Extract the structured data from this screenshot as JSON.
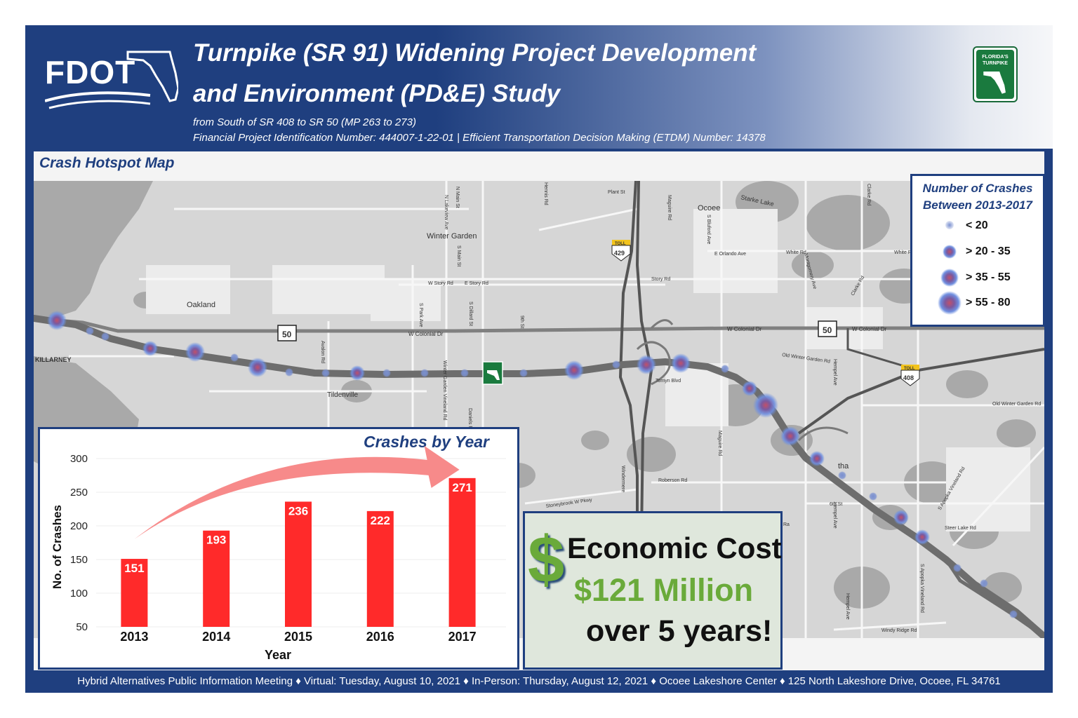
{
  "header": {
    "logo_text": "FDOT",
    "title_line1": "Turnpike (SR 91) Widening Project Development",
    "title_line2": "and Environment (PD&E) Study",
    "subtitle_line1": "from South of SR 408 to SR 50 (MP 263 to 273)",
    "subtitle_line2": "Financial Project Identification Number: 444007-1-22-01 |  Efficient Transportation Decision Making (ETDM) Number: 14378",
    "partner_logo_text": [
      "FLORIDA'S",
      "TURNPIKE"
    ]
  },
  "map": {
    "title": "Crash Hotspot Map",
    "places": [
      "Winter Garden",
      "Oakland",
      "KILLARNEY",
      "Tildenville",
      "Ocoee",
      "Starke Lake",
      "tha"
    ],
    "streets": [
      "W Colonial Dr",
      "W Colonial Dr",
      "W Colonial Dr",
      "Plant St",
      "W Story Rd",
      "E Story Rd",
      "Story Rd",
      "E Orlando Ave",
      "White Rd",
      "White R",
      "Old Winter Garden Rd",
      "Old Winter Garden Rd",
      "Tomyn Blvd",
      "Roberson Rd",
      "Stoneybrook W Pkwy",
      "6th St",
      "Steer Lake Rd",
      "Windy Ridge Rd",
      "Avalon Rd",
      "9th St",
      "S Park Ave",
      "S Dillard St",
      "Winter Garden Vineland Rd",
      "Daniels Rd",
      "Maguire Rd",
      "Maguire Rd",
      "Hempel Ave",
      "Hempel Ave",
      "Hempel Ave",
      "S Apopka Vineland Rd",
      "S Apopka Vineland Rd",
      "Montgomery Ave",
      "Clarke Rd",
      "Clarke Rd",
      "S Bluford Ave",
      "N Main St",
      "S Main St",
      "N Lakeview Ave",
      "Hennis Rd",
      "Windermere",
      "Ra"
    ],
    "shields": {
      "sr50": "50",
      "sr429": "429",
      "sr408": "408",
      "toll": "TOLL"
    },
    "hotspots": [
      {
        "name": "hotspot-01",
        "category": "> 35 - 55"
      },
      {
        "name": "hotspot-02",
        "category": "< 20"
      },
      {
        "name": "hotspot-03",
        "category": "< 20"
      },
      {
        "name": "hotspot-04",
        "category": "> 20 - 35"
      },
      {
        "name": "hotspot-05",
        "category": "> 35 - 55"
      },
      {
        "name": "hotspot-06",
        "category": "< 20"
      },
      {
        "name": "hotspot-07",
        "category": "> 35 - 55"
      },
      {
        "name": "hotspot-08",
        "category": "< 20"
      },
      {
        "name": "hotspot-09",
        "category": "< 20"
      },
      {
        "name": "hotspot-10",
        "category": "> 20 - 35"
      },
      {
        "name": "hotspot-11",
        "category": "< 20"
      },
      {
        "name": "hotspot-12",
        "category": "< 20"
      },
      {
        "name": "hotspot-13",
        "category": "< 20"
      },
      {
        "name": "hotspot-14",
        "category": "< 20"
      },
      {
        "name": "hotspot-15",
        "category": "> 35 - 55"
      },
      {
        "name": "hotspot-16",
        "category": "< 20"
      },
      {
        "name": "hotspot-17",
        "category": "> 35 - 55"
      },
      {
        "name": "hotspot-18",
        "category": "> 35 - 55"
      },
      {
        "name": "hotspot-19",
        "category": "< 20"
      },
      {
        "name": "hotspot-20",
        "category": "> 20 - 35"
      },
      {
        "name": "hotspot-21",
        "category": "> 55 - 80"
      },
      {
        "name": "hotspot-22",
        "category": "> 35 - 55"
      },
      {
        "name": "hotspot-23",
        "category": "> 20 - 35"
      },
      {
        "name": "hotspot-24",
        "category": "< 20"
      },
      {
        "name": "hotspot-25",
        "category": "< 20"
      },
      {
        "name": "hotspot-26",
        "category": "> 20 - 35"
      },
      {
        "name": "hotspot-27",
        "category": "> 20 - 35"
      },
      {
        "name": "hotspot-28",
        "category": "< 20"
      },
      {
        "name": "hotspot-29",
        "category": "< 20"
      },
      {
        "name": "hotspot-30",
        "category": "< 20"
      }
    ]
  },
  "legend": {
    "title_line1": "Number of Crashes",
    "title_line2": "Between 2013-2017",
    "items": [
      {
        "label": "< 20"
      },
      {
        "label": "> 20 - 35"
      },
      {
        "label": "> 35 - 55"
      },
      {
        "label": "> 55 - 80"
      }
    ]
  },
  "chart_data": {
    "type": "bar",
    "title": "Crashes by Year",
    "categories": [
      "2013",
      "2014",
      "2015",
      "2016",
      "2017"
    ],
    "values": [
      151,
      193,
      236,
      222,
      271
    ],
    "xlabel": "Year",
    "ylabel": "No. of Crashes",
    "ylim": [
      50,
      300
    ],
    "yticks": [
      50,
      100,
      150,
      200,
      250,
      300
    ],
    "bar_color": "#ff2a2a",
    "trend_arrow_color": "#f78a8a",
    "data_labels": true
  },
  "economic_cost": {
    "symbol": "$",
    "line1": "Economic Cost",
    "line2": "$121 Million",
    "line3": "over 5 years!"
  },
  "footer": {
    "text": "Hybrid Alternatives Public Information Meeting  ♦  Virtual: Tuesday, August 10, 2021  ♦  In-Person: Thursday, August 12, 2021  ♦  Ocoee Lakeshore Center  ♦  125 North Lakeshore Drive, Ocoee, FL 34761"
  },
  "colors": {
    "brand_blue": "#1f3f7f",
    "cost_green": "#6aaa3a",
    "hotspot_blue": "#6f8fe0",
    "hotspot_core": "#b0506a"
  }
}
